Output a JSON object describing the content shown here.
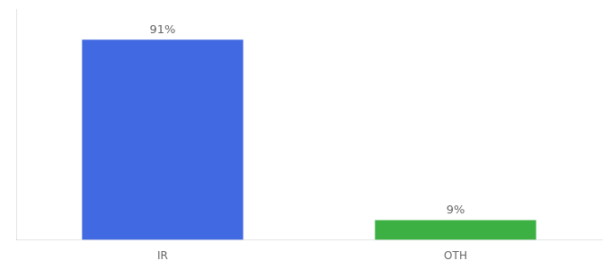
{
  "chart_data": {
    "type": "bar",
    "categories": [
      "IR",
      "OTH"
    ],
    "values": [
      91,
      9
    ],
    "colors": [
      "#4169e1",
      "#3cb043"
    ],
    "ylim": [
      0,
      105
    ],
    "data_labels": true,
    "value_labels": [
      "91%",
      "9%"
    ],
    "tick_labels": "x",
    "grid": false
  }
}
